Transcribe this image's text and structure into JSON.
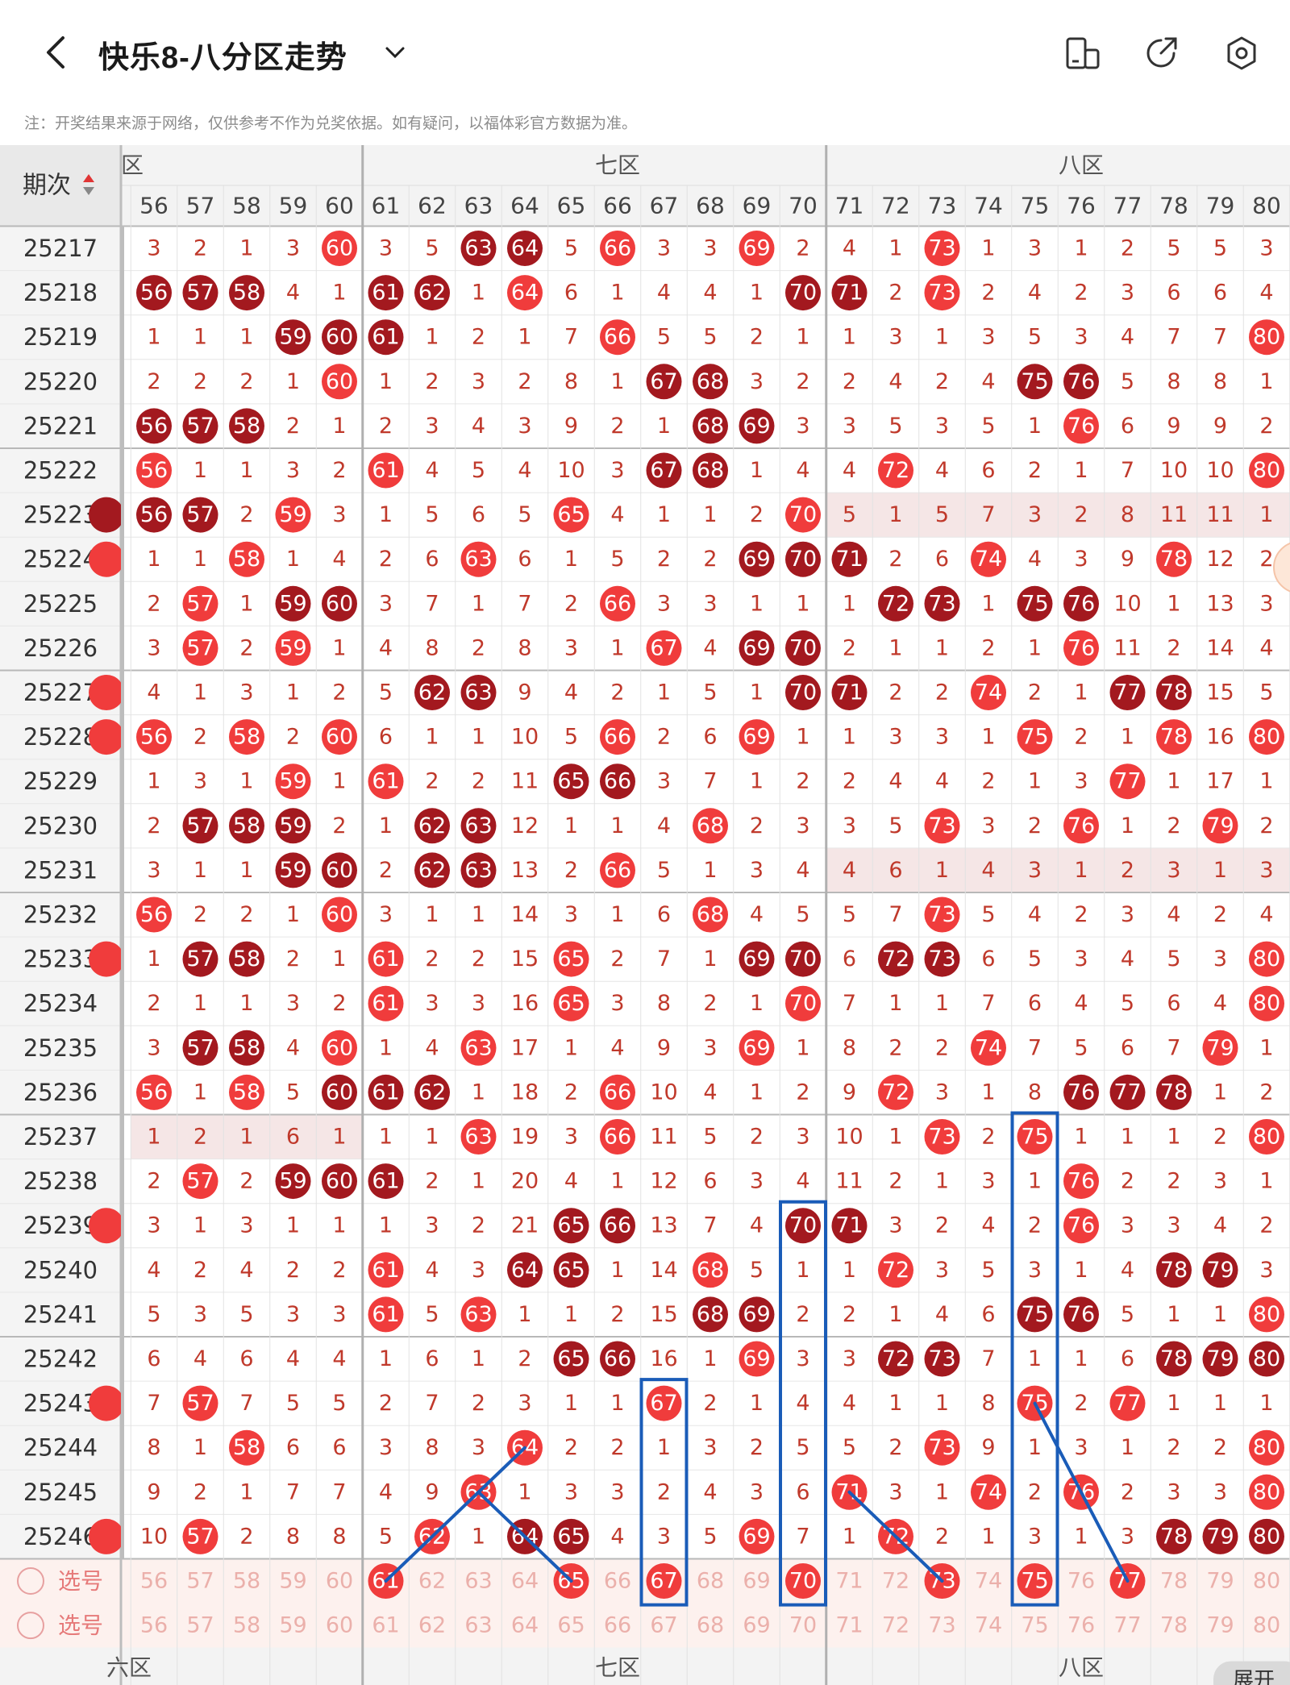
{
  "header": {
    "title": "快乐8-八分区走势",
    "back_icon": "chevron-left-icon",
    "dropdown_icon": "chevron-down-icon",
    "icons": [
      "split-screen-icon",
      "share-icon",
      "settings-icon"
    ]
  },
  "notice": "注：开奖结果来源于网络，仅供参考不作为兑奖依据。如有疑问，以福体彩官方数据为准。",
  "table": {
    "period_header": "期次",
    "sort_icon": "sort-arrows-icon",
    "zone_partial_left": "六区",
    "zone_seven": "七区",
    "zone_eight": "八区",
    "columns": [
      "56",
      "57",
      "58",
      "59",
      "60",
      "61",
      "62",
      "63",
      "64",
      "65",
      "66",
      "67",
      "68",
      "69",
      "70",
      "71",
      "72",
      "73",
      "74",
      "75",
      "76",
      "77",
      "78",
      "79",
      "80"
    ],
    "rows": [
      {
        "period": "25217",
        "cells": [
          "3",
          "2",
          "1",
          "3",
          "60",
          "3",
          "5",
          "63",
          "64",
          "5",
          "66",
          "3",
          "3",
          "69",
          "2",
          "4",
          "1",
          "73",
          "1",
          "3",
          "1",
          "2",
          "5",
          "5",
          "3"
        ]
      },
      {
        "period": "25218",
        "cells": [
          "56",
          "57",
          "58",
          "4",
          "1",
          "61",
          "62",
          "1",
          "64",
          "6",
          "1",
          "4",
          "4",
          "1",
          "70",
          "71",
          "2",
          "73",
          "2",
          "4",
          "2",
          "3",
          "6",
          "6",
          "4"
        ]
      },
      {
        "period": "25219",
        "cells": [
          "1",
          "1",
          "1",
          "59",
          "60",
          "61",
          "1",
          "2",
          "1",
          "7",
          "66",
          "5",
          "5",
          "2",
          "1",
          "1",
          "3",
          "1",
          "3",
          "5",
          "3",
          "4",
          "7",
          "7",
          "80"
        ]
      },
      {
        "period": "25220",
        "cells": [
          "2",
          "2",
          "2",
          "1",
          "60",
          "1",
          "2",
          "3",
          "2",
          "8",
          "1",
          "67",
          "68",
          "3",
          "2",
          "2",
          "4",
          "2",
          "4",
          "75",
          "76",
          "5",
          "8",
          "8",
          "1"
        ]
      },
      {
        "period": "25221",
        "cells": [
          "56",
          "57",
          "58",
          "2",
          "1",
          "2",
          "3",
          "4",
          "3",
          "9",
          "2",
          "1",
          "68",
          "69",
          "3",
          "3",
          "5",
          "3",
          "5",
          "1",
          "76",
          "6",
          "9",
          "9",
          "2"
        ]
      },
      {
        "period": "25222",
        "cells": [
          "56",
          "1",
          "1",
          "3",
          "2",
          "61",
          "4",
          "5",
          "4",
          "10",
          "3",
          "67",
          "68",
          "1",
          "4",
          "4",
          "72",
          "4",
          "6",
          "2",
          "1",
          "7",
          "10",
          "10",
          "80"
        ]
      },
      {
        "period": "25223",
        "cells": [
          "56",
          "57",
          "2",
          "59",
          "3",
          "1",
          "5",
          "6",
          "5",
          "65",
          "4",
          "1",
          "1",
          "2",
          "70",
          "5",
          "1",
          "5",
          "7",
          "3",
          "2",
          "8",
          "11",
          "11",
          "1"
        ]
      },
      {
        "period": "25224",
        "cells": [
          "1",
          "1",
          "58",
          "1",
          "4",
          "2",
          "6",
          "63",
          "6",
          "1",
          "5",
          "2",
          "2",
          "69",
          "70",
          "71",
          "2",
          "6",
          "74",
          "4",
          "3",
          "9",
          "78",
          "12",
          "2"
        ]
      },
      {
        "period": "25225",
        "cells": [
          "2",
          "57",
          "1",
          "59",
          "60",
          "3",
          "7",
          "1",
          "7",
          "2",
          "66",
          "3",
          "3",
          "1",
          "1",
          "1",
          "72",
          "73",
          "1",
          "75",
          "76",
          "10",
          "1",
          "13",
          "3"
        ]
      },
      {
        "period": "25226",
        "cells": [
          "3",
          "57",
          "2",
          "59",
          "1",
          "4",
          "8",
          "2",
          "8",
          "3",
          "1",
          "67",
          "4",
          "69",
          "70",
          "2",
          "1",
          "1",
          "2",
          "1",
          "76",
          "11",
          "2",
          "14",
          "4"
        ]
      },
      {
        "period": "25227",
        "cells": [
          "4",
          "1",
          "3",
          "1",
          "2",
          "5",
          "62",
          "63",
          "9",
          "4",
          "2",
          "1",
          "5",
          "1",
          "70",
          "71",
          "2",
          "2",
          "74",
          "2",
          "1",
          "77",
          "78",
          "15",
          "5"
        ]
      },
      {
        "period": "25228",
        "cells": [
          "56",
          "2",
          "58",
          "2",
          "60",
          "6",
          "1",
          "1",
          "10",
          "5",
          "66",
          "2",
          "6",
          "69",
          "1",
          "1",
          "3",
          "3",
          "1",
          "75",
          "2",
          "1",
          "78",
          "16",
          "80"
        ]
      },
      {
        "period": "25229",
        "cells": [
          "1",
          "3",
          "1",
          "59",
          "1",
          "61",
          "2",
          "2",
          "11",
          "65",
          "66",
          "3",
          "7",
          "1",
          "2",
          "2",
          "4",
          "4",
          "2",
          "1",
          "3",
          "77",
          "1",
          "17",
          "1"
        ]
      },
      {
        "period": "25230",
        "cells": [
          "2",
          "57",
          "58",
          "59",
          "2",
          "1",
          "62",
          "63",
          "12",
          "1",
          "1",
          "4",
          "68",
          "2",
          "3",
          "3",
          "5",
          "73",
          "3",
          "2",
          "76",
          "1",
          "2",
          "79",
          "2"
        ]
      },
      {
        "period": "25231",
        "cells": [
          "3",
          "1",
          "1",
          "59",
          "60",
          "2",
          "62",
          "63",
          "13",
          "2",
          "66",
          "5",
          "1",
          "3",
          "4",
          "4",
          "6",
          "1",
          "4",
          "3",
          "1",
          "2",
          "3",
          "1",
          "3"
        ]
      },
      {
        "period": "25232",
        "cells": [
          "56",
          "2",
          "2",
          "1",
          "60",
          "3",
          "1",
          "1",
          "14",
          "3",
          "1",
          "6",
          "68",
          "4",
          "5",
          "5",
          "7",
          "73",
          "5",
          "4",
          "2",
          "3",
          "4",
          "2",
          "4"
        ]
      },
      {
        "period": "25233",
        "cells": [
          "1",
          "57",
          "58",
          "2",
          "1",
          "61",
          "2",
          "2",
          "15",
          "65",
          "2",
          "7",
          "1",
          "69",
          "70",
          "6",
          "72",
          "73",
          "6",
          "5",
          "3",
          "4",
          "5",
          "3",
          "80"
        ]
      },
      {
        "period": "25234",
        "cells": [
          "2",
          "1",
          "1",
          "3",
          "2",
          "61",
          "3",
          "3",
          "16",
          "65",
          "3",
          "8",
          "2",
          "1",
          "70",
          "7",
          "1",
          "1",
          "7",
          "6",
          "4",
          "5",
          "6",
          "4",
          "80"
        ]
      },
      {
        "period": "25235",
        "cells": [
          "3",
          "57",
          "58",
          "4",
          "60",
          "1",
          "4",
          "63",
          "17",
          "1",
          "4",
          "9",
          "3",
          "69",
          "1",
          "8",
          "2",
          "2",
          "74",
          "7",
          "5",
          "6",
          "7",
          "79",
          "1"
        ]
      },
      {
        "period": "25236",
        "cells": [
          "56",
          "1",
          "58",
          "5",
          "60",
          "61",
          "62",
          "1",
          "18",
          "2",
          "66",
          "10",
          "4",
          "1",
          "2",
          "9",
          "72",
          "3",
          "1",
          "8",
          "76",
          "77",
          "78",
          "1",
          "2"
        ]
      },
      {
        "period": "25237",
        "cells": [
          "1",
          "2",
          "1",
          "6",
          "1",
          "1",
          "1",
          "63",
          "19",
          "3",
          "66",
          "11",
          "5",
          "2",
          "3",
          "10",
          "1",
          "73",
          "2",
          "75",
          "1",
          "1",
          "1",
          "2",
          "80"
        ]
      },
      {
        "period": "25238",
        "cells": [
          "2",
          "57",
          "2",
          "59",
          "60",
          "61",
          "2",
          "1",
          "20",
          "4",
          "1",
          "12",
          "6",
          "3",
          "4",
          "11",
          "2",
          "1",
          "3",
          "1",
          "76",
          "2",
          "2",
          "3",
          "1"
        ]
      },
      {
        "period": "25239",
        "cells": [
          "3",
          "1",
          "3",
          "1",
          "1",
          "1",
          "3",
          "2",
          "21",
          "65",
          "66",
          "13",
          "7",
          "4",
          "70",
          "71",
          "3",
          "2",
          "4",
          "2",
          "76",
          "3",
          "3",
          "4",
          "2"
        ]
      },
      {
        "period": "25240",
        "cells": [
          "4",
          "2",
          "4",
          "2",
          "2",
          "61",
          "4",
          "3",
          "64",
          "65",
          "1",
          "14",
          "68",
          "5",
          "1",
          "1",
          "72",
          "3",
          "5",
          "3",
          "1",
          "4",
          "78",
          "79",
          "3"
        ]
      },
      {
        "period": "25241",
        "cells": [
          "5",
          "3",
          "5",
          "3",
          "3",
          "61",
          "5",
          "63",
          "1",
          "1",
          "2",
          "15",
          "68",
          "69",
          "2",
          "2",
          "1",
          "4",
          "6",
          "75",
          "76",
          "5",
          "1",
          "1",
          "80"
        ]
      },
      {
        "period": "25242",
        "cells": [
          "6",
          "4",
          "6",
          "4",
          "4",
          "1",
          "6",
          "1",
          "2",
          "65",
          "66",
          "16",
          "1",
          "69",
          "3",
          "3",
          "72",
          "73",
          "7",
          "1",
          "1",
          "6",
          "78",
          "79",
          "80"
        ]
      },
      {
        "period": "25243",
        "cells": [
          "7",
          "57",
          "7",
          "5",
          "5",
          "2",
          "7",
          "2",
          "3",
          "1",
          "1",
          "67",
          "2",
          "1",
          "4",
          "4",
          "1",
          "1",
          "8",
          "75",
          "2",
          "77",
          "1",
          "1",
          "1"
        ]
      },
      {
        "period": "25244",
        "cells": [
          "8",
          "1",
          "58",
          "6",
          "6",
          "3",
          "8",
          "3",
          "64",
          "2",
          "2",
          "1",
          "3",
          "2",
          "5",
          "5",
          "2",
          "73",
          "9",
          "1",
          "3",
          "1",
          "2",
          "2",
          "80"
        ]
      },
      {
        "period": "25245",
        "cells": [
          "9",
          "2",
          "1",
          "7",
          "7",
          "4",
          "9",
          "63",
          "1",
          "3",
          "3",
          "2",
          "4",
          "3",
          "6",
          "71",
          "3",
          "1",
          "74",
          "2",
          "76",
          "2",
          "3",
          "3",
          "80"
        ]
      },
      {
        "period": "25246",
        "cells": [
          "10",
          "57",
          "2",
          "8",
          "8",
          "5",
          "62",
          "1",
          "64",
          "65",
          "4",
          "3",
          "5",
          "69",
          "7",
          "1",
          "72",
          "2",
          "1",
          "3",
          "1",
          "3",
          "78",
          "79",
          "80"
        ]
      }
    ],
    "select_label": "选号",
    "select_row1_selected": [
      "61",
      "65",
      "67",
      "70",
      "73",
      "75",
      "77"
    ],
    "footer_partial_left": "六区",
    "footer_zone_seven": "七区",
    "footer_zone_eight": "八区",
    "expand_label": "展开"
  },
  "colors": {
    "red_ball": "#f03c3c",
    "dark_ball": "#a3191f",
    "number_text": "#c0392b",
    "zone_shade": "#f5e6e6",
    "select_bg": "#fdf1ee",
    "blue_annotation": "#1a5cb8"
  }
}
